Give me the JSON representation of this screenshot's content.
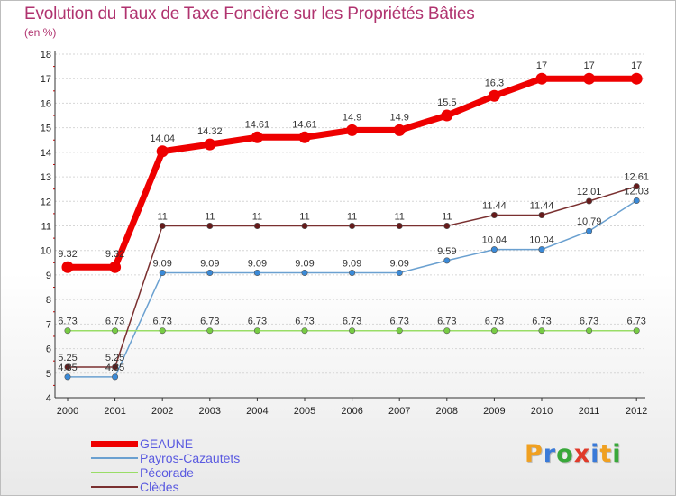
{
  "title": "Evolution du Taux de Taxe Foncière sur les Propriétés Bâties",
  "unit_label": "(en %)",
  "logo": {
    "text": "Proxiti",
    "letters": [
      {
        "ch": "P",
        "color": "#f0a020"
      },
      {
        "ch": "r",
        "color": "#3a7ad8"
      },
      {
        "ch": "o",
        "color": "#39a83a"
      },
      {
        "ch": "x",
        "color": "#e03a2a"
      },
      {
        "ch": "i",
        "color": "#3a7ad8"
      },
      {
        "ch": "t",
        "color": "#f0a020"
      },
      {
        "ch": "i",
        "color": "#39a83a"
      }
    ]
  },
  "chart_data": {
    "type": "line",
    "title": "Evolution du Taux de Taxe Foncière sur les Propriétés Bâties",
    "ylabel": "(en %)",
    "xlabel": "",
    "categories": [
      "2000",
      "2001",
      "2002",
      "2003",
      "2004",
      "2005",
      "2006",
      "2007",
      "2008",
      "2009",
      "2010",
      "2011",
      "2012"
    ],
    "ylim": [
      4,
      18
    ],
    "yticks": [
      4,
      5,
      6,
      7,
      8,
      9,
      10,
      11,
      12,
      13,
      14,
      15,
      16,
      17,
      18
    ],
    "legend_position": "bottom-left",
    "series": [
      {
        "name": "GEAUNE",
        "color": "#ee0000",
        "style": "thick",
        "values": [
          9.32,
          9.32,
          14.04,
          14.32,
          14.61,
          14.61,
          14.9,
          14.9,
          15.5,
          16.3,
          17,
          17,
          17
        ],
        "labels": [
          "9.32",
          "9.32",
          "14.04",
          "14.32",
          "14.61",
          "14.61",
          "14.9",
          "14.9",
          "15.5",
          "16.3",
          "17",
          "17",
          "17"
        ],
        "label_offset": "above"
      },
      {
        "name": "Payros-Cazautets",
        "color": "#6aa0d0",
        "marker": "#3a8ad8",
        "style": "thin",
        "values": [
          4.85,
          4.85,
          9.09,
          9.09,
          9.09,
          9.09,
          9.09,
          9.09,
          9.59,
          10.04,
          10.04,
          10.79,
          12.03
        ],
        "labels": [
          "4.85",
          "4.85",
          "9.09",
          "9.09",
          "9.09",
          "9.09",
          "9.09",
          "9.09",
          "9.59",
          "10.04",
          "10.04",
          "10.79",
          "12.03"
        ],
        "label_offset": "above"
      },
      {
        "name": "Pécorade",
        "color": "#99dd66",
        "marker": "#77cc44",
        "style": "thin",
        "values": [
          6.73,
          6.73,
          6.73,
          6.73,
          6.73,
          6.73,
          6.73,
          6.73,
          6.73,
          6.73,
          6.73,
          6.73,
          6.73
        ],
        "labels": [
          "6.73",
          "6.73",
          "6.73",
          "6.73",
          "6.73",
          "6.73",
          "6.73",
          "6.73",
          "6.73",
          "6.73",
          "6.73",
          "6.73",
          "6.73"
        ],
        "label_offset": "above"
      },
      {
        "name": "Clèdes",
        "color": "#7a3030",
        "marker": "#661a1a",
        "style": "thin",
        "values": [
          5.25,
          5.25,
          11,
          11,
          11,
          11,
          11,
          11,
          11,
          11.44,
          11.44,
          12.01,
          12.61
        ],
        "labels": [
          "5.25",
          "5.25",
          "11",
          "11",
          "11",
          "11",
          "11",
          "11",
          "11",
          "11.44",
          "11.44",
          "12.01",
          "12.61"
        ],
        "label_offset": "above"
      }
    ],
    "legend_text_colors": [
      "#5a5ae0",
      "#5a5ae0",
      "#5a5ae0",
      "#5a5ae0"
    ]
  }
}
